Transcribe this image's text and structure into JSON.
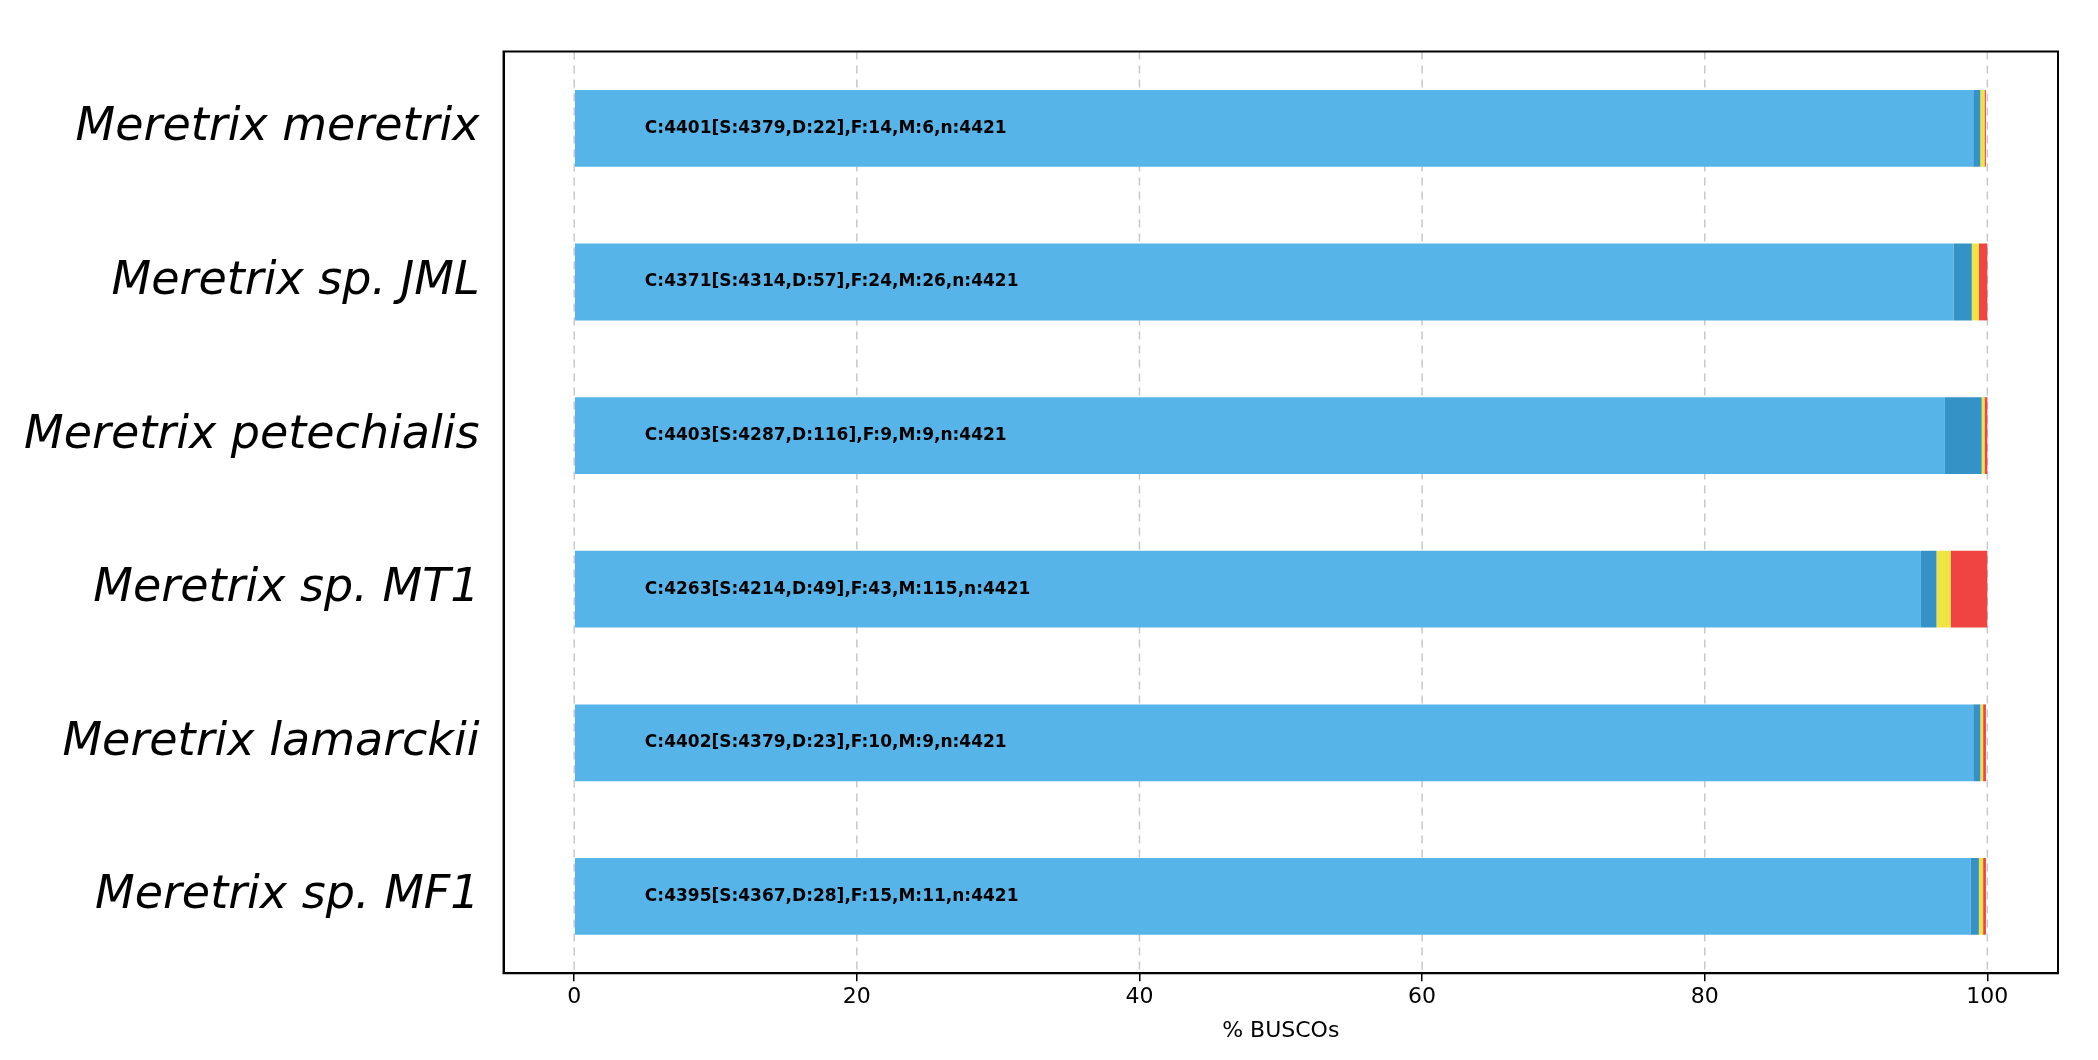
{
  "chart_data": {
    "type": "bar",
    "orientation": "horizontal",
    "stacked": true,
    "categories": [
      "Meretrix meretrix",
      "Meretrix sp. JML",
      "Meretrix petechialis",
      "Meretrix sp. MT1",
      "Meretrix lamarckii",
      "Meretrix sp. MF1"
    ],
    "series": [
      {
        "color": "#56b4e9",
        "values": [
          99.0,
          97.6,
          97.0,
          95.3,
          99.0,
          98.8
        ]
      },
      {
        "color": "#3492c7",
        "values": [
          0.5,
          1.3,
          2.6,
          1.1,
          0.5,
          0.6
        ]
      },
      {
        "color": "#f0e442",
        "values": [
          0.3,
          0.5,
          0.2,
          1.0,
          0.2,
          0.3
        ]
      },
      {
        "color": "#f04442",
        "values": [
          0.1,
          0.6,
          0.2,
          2.6,
          0.2,
          0.2
        ]
      }
    ],
    "xlabel": "% BUSCOs",
    "xlim": [
      -5,
      105
    ],
    "xticks": [
      0,
      20,
      40,
      60,
      80,
      100
    ],
    "grid": "x",
    "legend": false,
    "annotations": [
      "C:4401[S:4379,D:22],F:14,M:6,n:4421",
      "C:4371[S:4314,D:57],F:24,M:26,n:4421",
      "C:4403[S:4287,D:116],F:9,M:9,n:4421",
      "C:4263[S:4214,D:49],F:43,M:115,n:4421",
      "C:4402[S:4379,D:23],F:10,M:9,n:4421",
      "C:4395[S:4367,D:28],F:15,M:11,n:4421"
    ]
  }
}
